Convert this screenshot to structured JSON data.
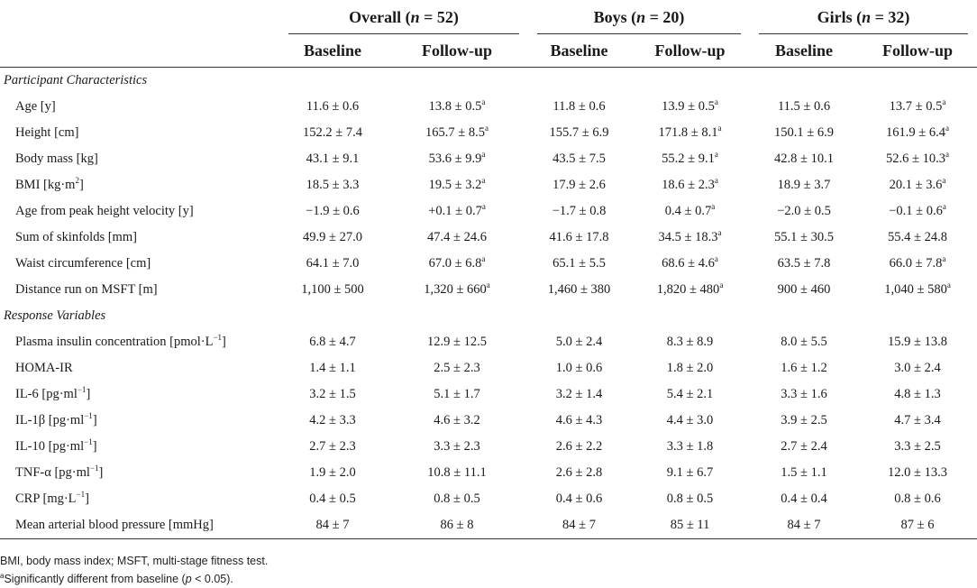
{
  "groups": [
    {
      "name": "Overall",
      "n_label": "n",
      "n_rest": " = 52)"
    },
    {
      "name": "Boys",
      "n_label": "n",
      "n_rest": " = 20)"
    },
    {
      "name": "Girls",
      "n_label": "n",
      "n_rest": " = 32)"
    }
  ],
  "subheaders": [
    "Baseline",
    "Follow-up",
    "Baseline",
    "Follow-up",
    "Baseline",
    "Follow-up"
  ],
  "sections": [
    {
      "title": "Participant Characteristics",
      "rows": [
        {
          "label": "Age [y]",
          "values": [
            "11.6 ± 0.6",
            "13.8 ± 0.5",
            "11.8 ± 0.6",
            "13.9 ± 0.5",
            "11.5 ± 0.6",
            "13.7 ± 0.5"
          ],
          "sig": [
            false,
            true,
            false,
            true,
            false,
            true
          ]
        },
        {
          "label": "Height [cm]",
          "values": [
            "152.2 ± 7.4",
            "165.7 ± 8.5",
            "155.7 ± 6.9",
            "171.8 ± 8.1",
            "150.1 ± 6.9",
            "161.9 ± 6.4"
          ],
          "sig": [
            false,
            true,
            false,
            true,
            false,
            true
          ]
        },
        {
          "label": "Body mass [kg]",
          "values": [
            "43.1 ± 9.1",
            "53.6 ± 9.9",
            "43.5 ± 7.5",
            "55.2 ± 9.1",
            "42.8 ± 10.1",
            "52.6 ± 10.3"
          ],
          "sig": [
            false,
            true,
            false,
            true,
            false,
            true
          ]
        },
        {
          "label": "BMI [kg·m",
          "label_sup": "2",
          "label_end": "]",
          "values": [
            "18.5 ± 3.3",
            "19.5 ± 3.2",
            "17.9 ± 2.6",
            "18.6 ± 2.3",
            "18.9 ± 3.7",
            "20.1 ± 3.6"
          ],
          "sig": [
            false,
            true,
            false,
            true,
            false,
            true
          ]
        },
        {
          "label": "Age from peak height velocity [y]",
          "values": [
            "−1.9 ± 0.6",
            "+0.1 ± 0.7",
            "−1.7 ± 0.8",
            "0.4 ± 0.7",
            "−2.0 ± 0.5",
            "−0.1 ± 0.6"
          ],
          "sig": [
            false,
            true,
            false,
            true,
            false,
            true
          ]
        },
        {
          "label": "Sum of skinfolds [mm]",
          "values": [
            "49.9 ± 27.0",
            "47.4 ± 24.6",
            "41.6 ± 17.8",
            "34.5 ± 18.3",
            "55.1 ± 30.5",
            "55.4 ± 24.8"
          ],
          "sig": [
            false,
            false,
            false,
            true,
            false,
            false
          ]
        },
        {
          "label": "Waist circumference [cm]",
          "values": [
            "64.1 ± 7.0",
            "67.0 ± 6.8",
            "65.1 ± 5.5",
            "68.6 ± 4.6",
            "63.5 ± 7.8",
            "66.0 ± 7.8"
          ],
          "sig": [
            false,
            true,
            false,
            true,
            false,
            true
          ]
        },
        {
          "label": "Distance run on MSFT [m]",
          "values": [
            "1,100 ± 500",
            "1,320 ± 660",
            "1,460 ± 380",
            "1,820 ± 480",
            "900 ± 460",
            "1,040 ± 580"
          ],
          "sig": [
            false,
            true,
            false,
            true,
            false,
            true
          ]
        }
      ]
    },
    {
      "title": "Response Variables",
      "rows": [
        {
          "label": "Plasma insulin concentration [pmol·L",
          "label_sup": "−1",
          "label_end": "]",
          "values": [
            "6.8 ± 4.7",
            "12.9 ± 12.5",
            "5.0 ± 2.4",
            "8.3 ± 8.9",
            "8.0 ± 5.5",
            "15.9 ± 13.8"
          ],
          "sig": [
            false,
            false,
            false,
            false,
            false,
            false
          ]
        },
        {
          "label": "HOMA-IR",
          "values": [
            "1.4 ± 1.1",
            "2.5 ± 2.3",
            "1.0 ± 0.6",
            "1.8 ± 2.0",
            "1.6 ± 1.2",
            "3.0 ± 2.4"
          ],
          "sig": [
            false,
            false,
            false,
            false,
            false,
            false
          ]
        },
        {
          "label": "IL-6 [pg·ml",
          "label_sup": "−1",
          "label_end": "]",
          "values": [
            "3.2 ± 1.5",
            "5.1 ± 1.7",
            "3.2 ± 1.4",
            "5.4 ± 2.1",
            "3.3 ± 1.6",
            "4.8 ± 1.3"
          ],
          "sig": [
            false,
            false,
            false,
            false,
            false,
            false
          ]
        },
        {
          "label": "IL-1β [pg·ml",
          "label_sup": "−1",
          "label_end": "]",
          "values": [
            "4.2 ± 3.3",
            "4.6 ± 3.2",
            "4.6 ± 4.3",
            "4.4 ± 3.0",
            "3.9 ± 2.5",
            "4.7 ± 3.4"
          ],
          "sig": [
            false,
            false,
            false,
            false,
            false,
            false
          ]
        },
        {
          "label": "IL-10 [pg·ml",
          "label_sup": "−1",
          "label_end": "]",
          "values": [
            "2.7 ± 2.3",
            "3.3 ± 2.3",
            "2.6 ± 2.2",
            "3.3 ± 1.8",
            "2.7 ± 2.4",
            "3.3 ± 2.5"
          ],
          "sig": [
            false,
            false,
            false,
            false,
            false,
            false
          ]
        },
        {
          "label": "TNF-α [pg·ml",
          "label_sup": "−1",
          "label_end": "]",
          "values": [
            "1.9 ± 2.0",
            "10.8 ± 11.1",
            "2.6 ± 2.8",
            "9.1 ± 6.7",
            "1.5 ± 1.1",
            "12.0 ± 13.3"
          ],
          "sig": [
            false,
            false,
            false,
            false,
            false,
            false
          ]
        },
        {
          "label": "CRP [mg·L",
          "label_sup": "−1",
          "label_end": "]",
          "values": [
            "0.4 ± 0.5",
            "0.8 ± 0.5",
            "0.4 ± 0.6",
            "0.8 ± 0.5",
            "0.4 ± 0.4",
            "0.8 ± 0.6"
          ],
          "sig": [
            false,
            false,
            false,
            false,
            false,
            false
          ]
        },
        {
          "label": "Mean arterial blood pressure [mmHg]",
          "values": [
            "84 ± 7",
            "86 ± 8",
            "84 ± 7",
            "85 ± 11",
            "84 ± 7",
            "87 ± 6"
          ],
          "sig": [
            false,
            false,
            false,
            false,
            false,
            false
          ]
        }
      ]
    }
  ],
  "sig_marker": "a",
  "footnotes": {
    "abbrev": "BMI, body mass index; MSFT, multi-stage fitness test.",
    "sig_marker": "a",
    "sig_text_pre": "Significantly different from baseline (",
    "sig_p": "p",
    "sig_text_post": " < 0.05)."
  }
}
